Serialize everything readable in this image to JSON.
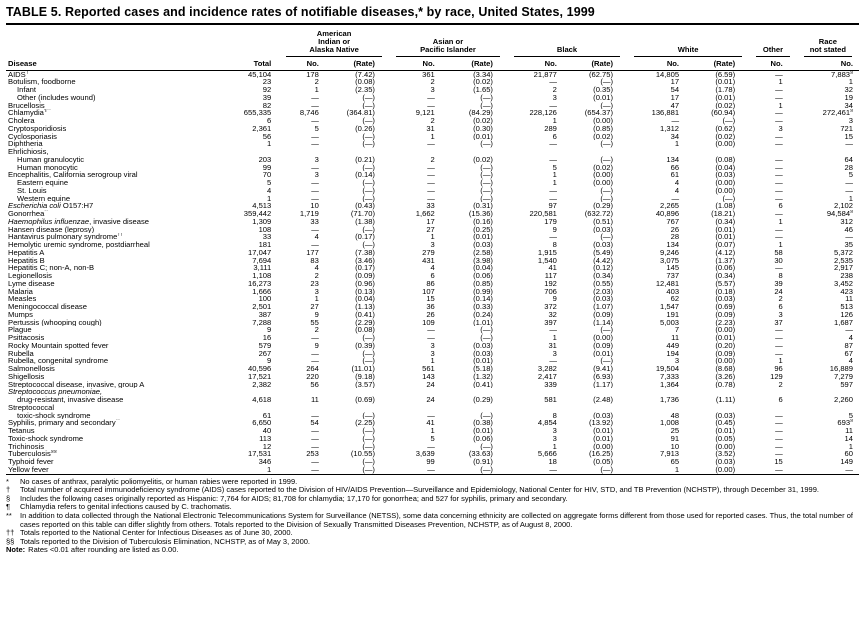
{
  "title": "TABLE 5. Reported cases and incidence rates of notifiable diseases,* by race, United States, 1999",
  "header": {
    "disease": "Disease",
    "total": "Total",
    "no": "No.",
    "rate": "(Rate)",
    "groups": [
      {
        "label": "American\nIndian or\nAlaska Native"
      },
      {
        "label": "Asian or\nPacific Islander"
      },
      {
        "label": "Black"
      },
      {
        "label": "White"
      },
      {
        "label": "Other"
      },
      {
        "label": "Race\nnot stated"
      }
    ]
  },
  "rows": [
    {
      "name": "AIDS",
      "sup": "†",
      "cells": [
        "45,104",
        "178",
        "(7.42)",
        "361",
        "(3.34)",
        "21,877",
        "(62.75)",
        "14,805",
        "(6.59)",
        "—",
        "7,883§"
      ]
    },
    {
      "name": "Botulism, foodborne",
      "cells": [
        "23",
        "2",
        "(0.08)",
        "2",
        "(0.02)",
        "—",
        "(—)",
        "17",
        "(0.01)",
        "1",
        "1"
      ]
    },
    {
      "name": "Infant",
      "indent": 1,
      "cells": [
        "92",
        "1",
        "(2.35)",
        "3",
        "(1.65)",
        "2",
        "(0.35)",
        "54",
        "(1.78)",
        "—",
        "32"
      ]
    },
    {
      "name": "Other (includes wound)",
      "indent": 1,
      "cells": [
        "39",
        "—",
        "(—)",
        "—",
        "(—)",
        "3",
        "(0.01)",
        "17",
        "(0.01)",
        "—",
        "19"
      ]
    },
    {
      "name": "Brucellosis",
      "cells": [
        "82",
        "—",
        "(—)",
        "—",
        "(—)",
        "—",
        "(—)",
        "47",
        "(0.02)",
        "1",
        "34"
      ]
    },
    {
      "name": "Chlamydia",
      "sup": "¶**",
      "cells": [
        "655,335",
        "8,746",
        "(364.81)",
        "9,121",
        "(84.29)",
        "228,126",
        "(654.37)",
        "136,881",
        "(60.94)",
        "—",
        "272,461§"
      ]
    },
    {
      "name": "Cholera",
      "cells": [
        "6",
        "—",
        "(—)",
        "2",
        "(0.02)",
        "1",
        "(0.00)",
        "—",
        "(—)",
        "—",
        "3"
      ]
    },
    {
      "name": "Cryptosporidiosis",
      "cells": [
        "2,361",
        "5",
        "(0.26)",
        "31",
        "(0.30)",
        "289",
        "(0.85)",
        "1,312",
        "(0.62)",
        "3",
        "721"
      ]
    },
    {
      "name": "Cyclosporiasis",
      "cells": [
        "56",
        "—",
        "(—)",
        "1",
        "(0.01)",
        "6",
        "(0.02)",
        "34",
        "(0.02)",
        "—",
        "15"
      ]
    },
    {
      "name": "Diphtheria",
      "cells": [
        "1",
        "—",
        "(—)",
        "—",
        "(—)",
        "—",
        "(—)",
        "1",
        "(0.00)",
        "—",
        "—"
      ]
    },
    {
      "name": "Ehrlichiosis,"
    },
    {
      "name": "Human granulocytic",
      "indent": 1,
      "cells": [
        "203",
        "3",
        "(0.21)",
        "2",
        "(0.02)",
        "—",
        "(—)",
        "134",
        "(0.08)",
        "—",
        "64"
      ]
    },
    {
      "name": "Human monocytic",
      "indent": 1,
      "cells": [
        "99",
        "—",
        "(—)",
        "—",
        "(—)",
        "5",
        "(0.02)",
        "66",
        "(0.04)",
        "—",
        "28"
      ]
    },
    {
      "name": "Encephalitis, California serogroup viral",
      "cells": [
        "70",
        "3",
        "(0.14)",
        "—",
        "(—)",
        "1",
        "(0.00)",
        "61",
        "(0.03)",
        "—",
        "5"
      ]
    },
    {
      "name": "Eastern equine",
      "indent": 1,
      "cells": [
        "5",
        "—",
        "(—)",
        "—",
        "(—)",
        "1",
        "(0.00)",
        "4",
        "(0.00)",
        "—",
        "—"
      ]
    },
    {
      "name": "St. Louis",
      "indent": 1,
      "cells": [
        "4",
        "—",
        "(—)",
        "—",
        "(—)",
        "—",
        "(—)",
        "4",
        "(0.00)",
        "—",
        "—"
      ]
    },
    {
      "name": "Western equine",
      "indent": 1,
      "cells": [
        "1",
        "—",
        "(—)",
        "—",
        "(—)",
        "—",
        "(—)",
        "—",
        "(—)",
        "—",
        "1"
      ]
    },
    {
      "italic": "Escherichia coli",
      "name": " O157:H7",
      "cells": [
        "4,513",
        "10",
        "(0.43)",
        "33",
        "(0.31)",
        "97",
        "(0.29)",
        "2,265",
        "(1.08)",
        "6",
        "2,102"
      ]
    },
    {
      "name": "Gonorrhea",
      "sup": "**",
      "cells": [
        "359,442",
        "1,719",
        "(71.70)",
        "1,662",
        "(15.36)",
        "220,581",
        "(632.72)",
        "40,896",
        "(18.21)",
        "—",
        "94,584§"
      ]
    },
    {
      "italic": "Haemophilus influenzae",
      "name": ", invasive disease",
      "cells": [
        "1,309",
        "33",
        "(1.38)",
        "17",
        "(0.16)",
        "179",
        "(0.51)",
        "767",
        "(0.34)",
        "1",
        "312"
      ]
    },
    {
      "name": "Hansen disease (leprosy)",
      "cells": [
        "108",
        "—",
        "(—)",
        "27",
        "(0.25)",
        "9",
        "(0.03)",
        "26",
        "(0.01)",
        "—",
        "46"
      ]
    },
    {
      "name": "Hantavirus pulmonary syndrome",
      "sup": "††",
      "cells": [
        "33",
        "4",
        "(0.17)",
        "1",
        "(0.01)",
        "—",
        "(—)",
        "28",
        "(0.01)",
        "—",
        "—"
      ]
    },
    {
      "name": "Hemolytic uremic syndrome, postdiarrheal",
      "cells": [
        "181",
        "—",
        "(—)",
        "3",
        "(0.03)",
        "8",
        "(0.03)",
        "134",
        "(0.07)",
        "1",
        "35"
      ]
    },
    {
      "name": "Hepatitis A",
      "cells": [
        "17,047",
        "177",
        "(7.38)",
        "279",
        "(2.58)",
        "1,915",
        "(5.49)",
        "9,246",
        "(4.12)",
        "58",
        "5,372"
      ]
    },
    {
      "name": "Hepatitis B",
      "cells": [
        "7,694",
        "83",
        "(3.46)",
        "431",
        "(3.98)",
        "1,540",
        "(4.42)",
        "3,075",
        "(1.37)",
        "30",
        "2,535"
      ]
    },
    {
      "name": "Hepatitis C; non-A, non-B",
      "cells": [
        "3,111",
        "4",
        "(0.17)",
        "4",
        "(0.04)",
        "41",
        "(0.12)",
        "145",
        "(0.06)",
        "—",
        "2,917"
      ]
    },
    {
      "name": "Legionellosis",
      "cells": [
        "1,108",
        "2",
        "(0.09)",
        "6",
        "(0.06)",
        "117",
        "(0.34)",
        "737",
        "(0.34)",
        "8",
        "238"
      ]
    },
    {
      "name": "Lyme disease",
      "cells": [
        "16,273",
        "23",
        "(0.96)",
        "86",
        "(0.85)",
        "192",
        "(0.55)",
        "12,481",
        "(5.57)",
        "39",
        "3,452"
      ]
    },
    {
      "name": "Malaria",
      "cells": [
        "1,666",
        "3",
        "(0.13)",
        "107",
        "(0.99)",
        "706",
        "(2.03)",
        "403",
        "(0.18)",
        "24",
        "423"
      ]
    },
    {
      "name": "Measles",
      "cells": [
        "100",
        "1",
        "(0.04)",
        "15",
        "(0.14)",
        "9",
        "(0.03)",
        "62",
        "(0.03)",
        "2",
        "11"
      ]
    },
    {
      "name": "Meningococcal disease",
      "cells": [
        "2,501",
        "27",
        "(1.13)",
        "36",
        "(0.33)",
        "372",
        "(1.07)",
        "1,547",
        "(0.69)",
        "6",
        "513"
      ]
    },
    {
      "name": "Mumps",
      "cells": [
        "387",
        "9",
        "(0.41)",
        "26",
        "(0.24)",
        "32",
        "(0.09)",
        "191",
        "(0.09)",
        "3",
        "126"
      ]
    },
    {
      "name": "Pertussis (whooping cough)",
      "cells": [
        "7,288",
        "55",
        "(2.29)",
        "109",
        "(1.01)",
        "397",
        "(1.14)",
        "5,003",
        "(2.23)",
        "37",
        "1,687"
      ]
    },
    {
      "name": "Plague",
      "cells": [
        "9",
        "2",
        "(0.08)",
        "—",
        "(—)",
        "—",
        "(—)",
        "7",
        "(0.00)",
        "—",
        "—"
      ]
    },
    {
      "name": "Psittacosis",
      "cells": [
        "16",
        "—",
        "(—)",
        "—",
        "(—)",
        "1",
        "(0.00)",
        "11",
        "(0.01)",
        "—",
        "4"
      ]
    },
    {
      "name": "Rocky Mountain spotted fever",
      "cells": [
        "579",
        "9",
        "(0.39)",
        "3",
        "(0.03)",
        "31",
        "(0.09)",
        "449",
        "(0.20)",
        "—",
        "87"
      ]
    },
    {
      "name": "Rubella",
      "cells": [
        "267",
        "—",
        "(—)",
        "3",
        "(0.03)",
        "3",
        "(0.01)",
        "194",
        "(0.09)",
        "—",
        "67"
      ]
    },
    {
      "name": "Rubella, congenital syndrome",
      "cells": [
        "9",
        "—",
        "(—)",
        "1",
        "(0.01)",
        "—",
        "(—)",
        "3",
        "(0.00)",
        "1",
        "4"
      ]
    },
    {
      "name": "Salmonellosis",
      "cells": [
        "40,596",
        "264",
        "(11.01)",
        "561",
        "(5.18)",
        "3,282",
        "(9.41)",
        "19,504",
        "(8.68)",
        "96",
        "16,889"
      ]
    },
    {
      "name": "Shigellosis",
      "cells": [
        "17,521",
        "220",
        "(9.18)",
        "143",
        "(1.32)",
        "2,417",
        "(6.93)",
        "7,333",
        "(3.26)",
        "129",
        "7,279"
      ]
    },
    {
      "name": "Streptococcal disease, invasive, group A",
      "cells": [
        "2,382",
        "56",
        "(3.57)",
        "24",
        "(0.41)",
        "339",
        "(1.17)",
        "1,364",
        "(0.78)",
        "2",
        "597"
      ]
    },
    {
      "italic": "Streptococcus pneumoniae,"
    },
    {
      "name": "drug-resistant, invasive disease",
      "indent": 1,
      "cells": [
        "4,618",
        "11",
        "(0.69)",
        "24",
        "(0.29)",
        "581",
        "(2.48)",
        "1,736",
        "(1.11)",
        "6",
        "2,260"
      ]
    },
    {
      "name": "Streptococcal"
    },
    {
      "name": "toxic-shock syndrome",
      "indent": 1,
      "cells": [
        "61",
        "—",
        "(—)",
        "—",
        "(—)",
        "8",
        "(0.03)",
        "48",
        "(0.03)",
        "—",
        "5"
      ]
    },
    {
      "name": "Syphilis, primary and secondary",
      "sup": "**",
      "cells": [
        "6,650",
        "54",
        "(2.25)",
        "41",
        "(0.38)",
        "4,854",
        "(13.92)",
        "1,008",
        "(0.45)",
        "—",
        "693§"
      ]
    },
    {
      "name": "Tetanus",
      "cells": [
        "40",
        "—",
        "(—)",
        "1",
        "(0.01)",
        "3",
        "(0.01)",
        "25",
        "(0.01)",
        "—",
        "11"
      ]
    },
    {
      "name": "Toxic-shock syndrome",
      "cells": [
        "113",
        "—",
        "(—)",
        "5",
        "(0.06)",
        "3",
        "(0.01)",
        "91",
        "(0.05)",
        "—",
        "14"
      ]
    },
    {
      "name": "Trichinosis",
      "cells": [
        "12",
        "—",
        "(—)",
        "—",
        "(—)",
        "1",
        "(0.00)",
        "10",
        "(0.00)",
        "—",
        "1"
      ]
    },
    {
      "name": "Tuberculosis",
      "sup": "§§",
      "cells": [
        "17,531",
        "253",
        "(10.55)",
        "3,639",
        "(33.63)",
        "5,666",
        "(16.25)",
        "7,913",
        "(3.52)",
        "—",
        "60"
      ]
    },
    {
      "name": "Typhoid fever",
      "cells": [
        "346",
        "—",
        "(—)",
        "99",
        "(0.91)",
        "18",
        "(0.05)",
        "65",
        "(0.03)",
        "15",
        "149"
      ]
    },
    {
      "name": "Yellow fever",
      "cells": [
        "1",
        "—",
        "(—)",
        "—",
        "(—)",
        "—",
        "(—)",
        "1",
        "(0.00)",
        "—",
        "—"
      ]
    }
  ],
  "footnotes": [
    {
      "symbol": "*",
      "text": "No cases of anthrax, paralytic poliomyelitis, or human rabies were reported in 1999."
    },
    {
      "symbol": "†",
      "text": "Total number of acquired immunodeficiency syndrome (AIDS) cases reported to the Division of HIV/AIDS Prevention—Surveillance and Epidemiology, National Center for HIV, STD, and TB Prevention (NCHSTP), through December 31, 1999."
    },
    {
      "symbol": "§",
      "text": "Includes the following cases originally reported as Hispanic: 7,764 for AIDS; 81,708 for chlamydia; 17,170 for gonorrhea; and 527 for syphilis, primary and secondary."
    },
    {
      "symbol": "¶",
      "text": "Chlamydia refers to genital infections caused by C. trachomatis."
    },
    {
      "symbol": "**",
      "text": "In addition to data collected through the National Electronic Telecommunications System for Surveillance (NETSS), some data concerning ethnicity are collected on aggregate forms different from those used for reported cases. Thus, the total number of cases reported on this table can differ slightly from others. Totals reported to the Division of Sexually Transmitted Diseases Prevention, NCHSTP, as of August 8, 2000."
    },
    {
      "symbol": "††",
      "text": "Totals reported to the National Center for Infectious Diseases as of June 30, 2000."
    },
    {
      "symbol": "§§",
      "text": "Totals reported to the Division of Tuberculosis Elimination, NCHSTP, as of May 3, 2000."
    },
    {
      "symbol": "Note:",
      "text": "Rates <0.01 after rounding are listed as 0.00."
    }
  ]
}
